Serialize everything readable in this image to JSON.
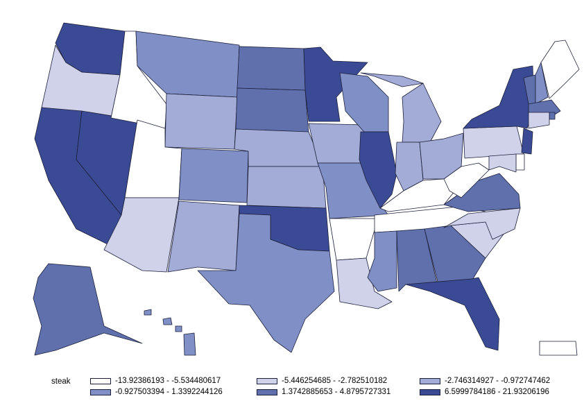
{
  "legend": {
    "title": "steak",
    "classes": [
      {
        "label": "-13.92386193 - -5.534480617",
        "color": "#ffffff"
      },
      {
        "label": "-5.446254685 - -2.782510182",
        "color": "#cfd2e8"
      },
      {
        "label": "-2.746314927 - -0.972747462",
        "color": "#a3acd7"
      },
      {
        "label": "-0.927503394 - 1.3392244126",
        "color": "#8090c6"
      },
      {
        "label": "1.3742885653 - 4.8795727331",
        "color": "#5f70ad"
      },
      {
        "label": "6.5999784186 - 21.93206196",
        "color": "#3b4a94"
      }
    ]
  },
  "states": {
    "WA": 5,
    "OR": 1,
    "CA": 5,
    "NV": 5,
    "ID": 0,
    "MT": 3,
    "WY": 2,
    "UT": 0,
    "AZ": 1,
    "CO": 3,
    "NM": 2,
    "ND": 4,
    "SD": 4,
    "NE": 2,
    "KS": 2,
    "OK": 5,
    "TX": 3,
    "MN": 5,
    "IA": 2,
    "MO": 3,
    "AR": 0,
    "LA": 1,
    "WI": 3,
    "IL": 5,
    "MS": 3,
    "MI": 2,
    "IN": 2,
    "KY": 0,
    "TN": 0,
    "AL": 4,
    "GA": 4,
    "FL": 5,
    "OH": 2,
    "WV": 0,
    "VA": 4,
    "NC": 1,
    "SC": 1,
    "PA": 1,
    "NY": 5,
    "VT": 4,
    "NH": 3,
    "ME": 0,
    "MA": 4,
    "CT": 1,
    "RI": 4,
    "NJ": 5,
    "DE": 0,
    "MD": 1,
    "AK": 4,
    "HI": 3,
    "PR": 0
  }
}
